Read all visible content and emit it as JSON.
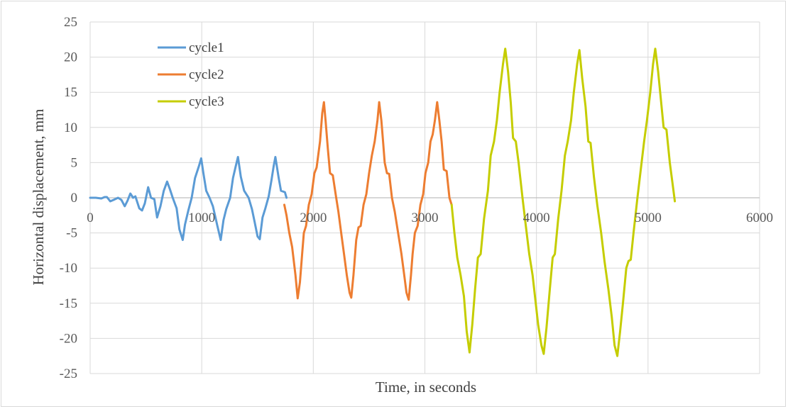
{
  "chart_data": {
    "type": "line",
    "xlabel": "Time, in seconds",
    "ylabel": "Horizontal displacement, mm",
    "xlim": [
      0,
      6000
    ],
    "ylim": [
      -25,
      25
    ],
    "x_ticks": [
      0,
      1000,
      2000,
      3000,
      4000,
      5000,
      6000
    ],
    "y_ticks": [
      -25,
      -20,
      -15,
      -10,
      -5,
      0,
      5,
      10,
      15,
      20,
      25
    ],
    "grid": true,
    "legend_position": "top-left",
    "series": [
      {
        "name": "cycle1",
        "color": "#5b9bd5",
        "points": [
          [
            0,
            0
          ],
          [
            50,
            0
          ],
          [
            100,
            -0.1
          ],
          [
            130,
            0.1
          ],
          [
            150,
            0.1
          ],
          [
            180,
            -0.5
          ],
          [
            210,
            -0.3
          ],
          [
            250,
            0
          ],
          [
            280,
            -0.3
          ],
          [
            310,
            -1.2
          ],
          [
            335,
            -0.4
          ],
          [
            360,
            0.6
          ],
          [
            385,
            0
          ],
          [
            405,
            0.2
          ],
          [
            440,
            -1.5
          ],
          [
            465,
            -1.8
          ],
          [
            490,
            -0.8
          ],
          [
            520,
            1.5
          ],
          [
            545,
            0
          ],
          [
            575,
            -0.2
          ],
          [
            600,
            -2.8
          ],
          [
            630,
            -1.2
          ],
          [
            660,
            1
          ],
          [
            690,
            2.3
          ],
          [
            715,
            1.2
          ],
          [
            740,
            0
          ],
          [
            775,
            -1.5
          ],
          [
            800,
            -4.5
          ],
          [
            830,
            -6
          ],
          [
            850,
            -3.8
          ],
          [
            880,
            -1.8
          ],
          [
            910,
            0
          ],
          [
            940,
            2.8
          ],
          [
            975,
            4.5
          ],
          [
            995,
            5.6
          ],
          [
            1015,
            3.5
          ],
          [
            1040,
            1
          ],
          [
            1070,
            0
          ],
          [
            1100,
            -1.2
          ],
          [
            1140,
            -4
          ],
          [
            1170,
            -6
          ],
          [
            1195,
            -3.2
          ],
          [
            1220,
            -1.6
          ],
          [
            1255,
            0
          ],
          [
            1280,
            2.8
          ],
          [
            1305,
            4.5
          ],
          [
            1325,
            5.8
          ],
          [
            1350,
            3
          ],
          [
            1380,
            1
          ],
          [
            1420,
            0
          ],
          [
            1450,
            -1.6
          ],
          [
            1475,
            -3.5
          ],
          [
            1500,
            -5.5
          ],
          [
            1520,
            -5.9
          ],
          [
            1545,
            -2.8
          ],
          [
            1570,
            -1.5
          ],
          [
            1600,
            0.2
          ],
          [
            1625,
            2.5
          ],
          [
            1645,
            4.5
          ],
          [
            1660,
            5.8
          ],
          [
            1690,
            2.8
          ],
          [
            1710,
            1
          ],
          [
            1745,
            0.8
          ],
          [
            1760,
            0
          ]
        ]
      },
      {
        "name": "cycle2",
        "color": "#ed7d31",
        "points": [
          [
            1740,
            -1
          ],
          [
            1760,
            -2.5
          ],
          [
            1785,
            -5
          ],
          [
            1810,
            -7
          ],
          [
            1840,
            -11
          ],
          [
            1860,
            -14.3
          ],
          [
            1880,
            -12
          ],
          [
            1900,
            -8
          ],
          [
            1915,
            -5
          ],
          [
            1935,
            -4
          ],
          [
            1960,
            -1
          ],
          [
            1985,
            0.5
          ],
          [
            2010,
            3.5
          ],
          [
            2030,
            4.3
          ],
          [
            2060,
            8
          ],
          [
            2080,
            12
          ],
          [
            2095,
            13.6
          ],
          [
            2110,
            11
          ],
          [
            2130,
            7
          ],
          [
            2150,
            3.5
          ],
          [
            2175,
            3.2
          ],
          [
            2200,
            0.5
          ],
          [
            2225,
            -2
          ],
          [
            2250,
            -5
          ],
          [
            2275,
            -8
          ],
          [
            2300,
            -11
          ],
          [
            2325,
            -13.5
          ],
          [
            2340,
            -14.2
          ],
          [
            2360,
            -11
          ],
          [
            2385,
            -6
          ],
          [
            2405,
            -4.2
          ],
          [
            2425,
            -4
          ],
          [
            2450,
            -1
          ],
          [
            2475,
            0.5
          ],
          [
            2500,
            3.5
          ],
          [
            2525,
            6
          ],
          [
            2550,
            8
          ],
          [
            2575,
            11
          ],
          [
            2590,
            13.6
          ],
          [
            2610,
            11
          ],
          [
            2625,
            8
          ],
          [
            2640,
            5
          ],
          [
            2660,
            3.5
          ],
          [
            2680,
            3.4
          ],
          [
            2705,
            0
          ],
          [
            2730,
            -2
          ],
          [
            2760,
            -5
          ],
          [
            2790,
            -8
          ],
          [
            2815,
            -11
          ],
          [
            2835,
            -13.5
          ],
          [
            2855,
            -14.5
          ],
          [
            2875,
            -11
          ],
          [
            2890,
            -8
          ],
          [
            2910,
            -5
          ],
          [
            2935,
            -4
          ],
          [
            2960,
            -1
          ],
          [
            2985,
            0.5
          ],
          [
            3005,
            3.5
          ],
          [
            3030,
            5
          ],
          [
            3050,
            8
          ],
          [
            3070,
            9
          ],
          [
            3090,
            11
          ],
          [
            3110,
            13.6
          ],
          [
            3130,
            11
          ],
          [
            3150,
            8
          ],
          [
            3170,
            4
          ],
          [
            3195,
            3.8
          ],
          [
            3220,
            0
          ],
          [
            3240,
            -1
          ]
        ]
      },
      {
        "name": "cycle3",
        "color": "#c5cd00",
        "points": [
          [
            3240,
            -1
          ],
          [
            3265,
            -5
          ],
          [
            3290,
            -8.5
          ],
          [
            3320,
            -11
          ],
          [
            3350,
            -14
          ],
          [
            3375,
            -19
          ],
          [
            3400,
            -22
          ],
          [
            3425,
            -18
          ],
          [
            3450,
            -13
          ],
          [
            3475,
            -8.5
          ],
          [
            3500,
            -8
          ],
          [
            3530,
            -3
          ],
          [
            3565,
            1
          ],
          [
            3590,
            6
          ],
          [
            3620,
            8
          ],
          [
            3645,
            11
          ],
          [
            3670,
            15
          ],
          [
            3700,
            19
          ],
          [
            3720,
            21.2
          ],
          [
            3745,
            18
          ],
          [
            3770,
            13.5
          ],
          [
            3790,
            8.5
          ],
          [
            3815,
            8
          ],
          [
            3840,
            5
          ],
          [
            3875,
            0
          ],
          [
            3905,
            -4
          ],
          [
            3935,
            -8
          ],
          [
            3965,
            -11
          ],
          [
            3990,
            -14.5
          ],
          [
            4015,
            -18
          ],
          [
            4045,
            -21
          ],
          [
            4065,
            -22.2
          ],
          [
            4090,
            -18.5
          ],
          [
            4120,
            -13
          ],
          [
            4145,
            -8.5
          ],
          [
            4165,
            -8
          ],
          [
            4195,
            -3
          ],
          [
            4225,
            1
          ],
          [
            4255,
            6
          ],
          [
            4280,
            8
          ],
          [
            4310,
            11
          ],
          [
            4335,
            15
          ],
          [
            4365,
            19
          ],
          [
            4385,
            21
          ],
          [
            4410,
            17
          ],
          [
            4440,
            13
          ],
          [
            4465,
            8
          ],
          [
            4485,
            7.8
          ],
          [
            4515,
            3
          ],
          [
            4545,
            -1
          ],
          [
            4580,
            -5
          ],
          [
            4610,
            -9
          ],
          [
            4645,
            -13
          ],
          [
            4675,
            -17
          ],
          [
            4700,
            -21
          ],
          [
            4725,
            -22.5
          ],
          [
            4750,
            -19
          ],
          [
            4775,
            -15
          ],
          [
            4805,
            -10
          ],
          [
            4825,
            -9
          ],
          [
            4845,
            -8.8
          ],
          [
            4870,
            -5
          ],
          [
            4905,
            0
          ],
          [
            4935,
            4
          ],
          [
            4965,
            8
          ],
          [
            4990,
            11
          ],
          [
            5020,
            15
          ],
          [
            5045,
            19
          ],
          [
            5065,
            21.2
          ],
          [
            5090,
            18
          ],
          [
            5115,
            14
          ],
          [
            5140,
            10
          ],
          [
            5165,
            9.7
          ],
          [
            5195,
            5
          ],
          [
            5220,
            2
          ],
          [
            5240,
            -0.5
          ]
        ]
      }
    ]
  }
}
